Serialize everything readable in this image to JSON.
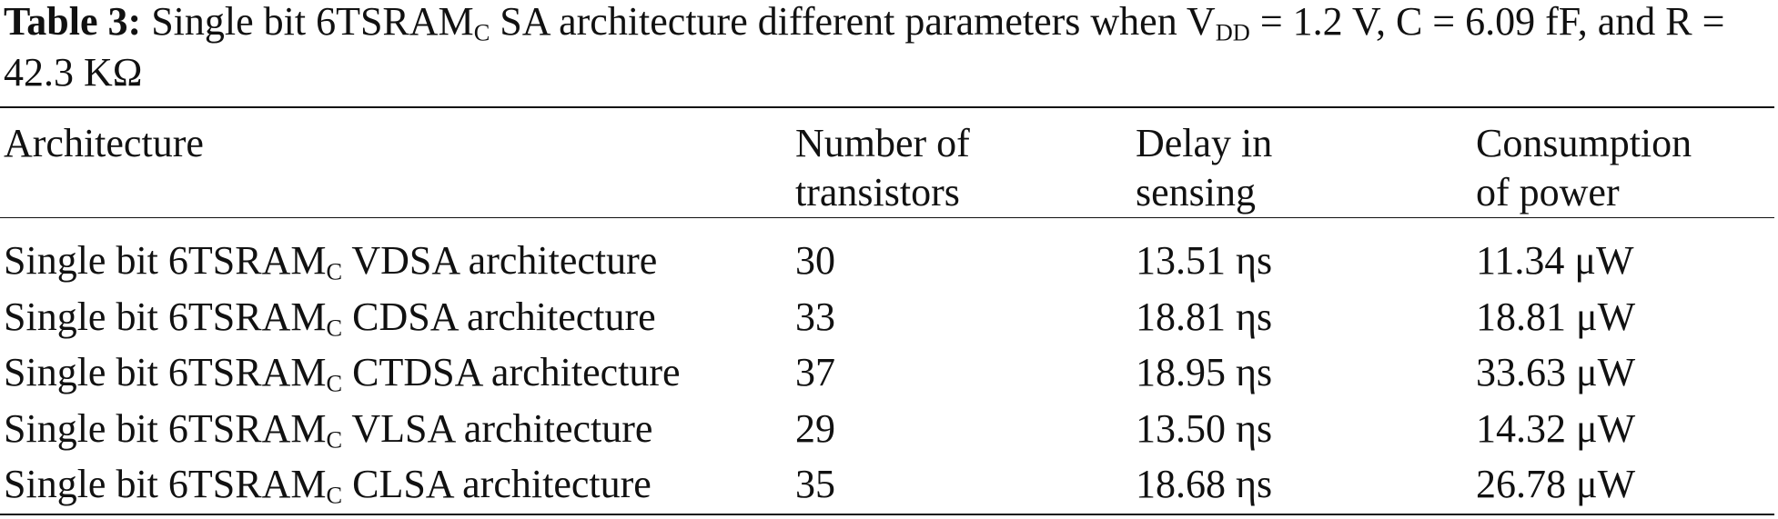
{
  "caption": {
    "label": "Table 3:",
    "parts": [
      "Single bit 6TSRAM",
      "C",
      " SA architecture different parameters when V",
      "DD",
      " = 1.2 V, C = 6.09 fF, and R = 42.3 KΩ"
    ]
  },
  "table": {
    "header": [
      [
        "Architecture"
      ],
      [
        "Number of",
        "transistors"
      ],
      [
        "Delay in",
        "sensing"
      ],
      [
        "Consumption",
        "of power"
      ]
    ],
    "rows": [
      {
        "architecture": [
          "Single bit 6TSRAM",
          "C",
          " VDSA architecture"
        ],
        "transistors": "30",
        "delay": "13.51 ηs",
        "power": "11.34 μW"
      },
      {
        "architecture": [
          "Single bit 6TSRAM",
          "C",
          " CDSA architecture"
        ],
        "transistors": "33",
        "delay": "18.81 ηs",
        "power": "18.81 μW"
      },
      {
        "architecture": [
          "Single bit 6TSRAM",
          "C",
          " CTDSA architecture"
        ],
        "transistors": "37",
        "delay": "18.95 ηs",
        "power": "33.63 μW"
      },
      {
        "architecture": [
          "Single bit 6TSRAM",
          "C",
          " VLSA architecture"
        ],
        "transistors": "29",
        "delay": "13.50 ηs",
        "power": "14.32 μW"
      },
      {
        "architecture": [
          "Single bit 6TSRAM",
          "C",
          " CLSA architecture"
        ],
        "transistors": "35",
        "delay": "18.68 ηs",
        "power": "26.78 μW"
      }
    ]
  }
}
